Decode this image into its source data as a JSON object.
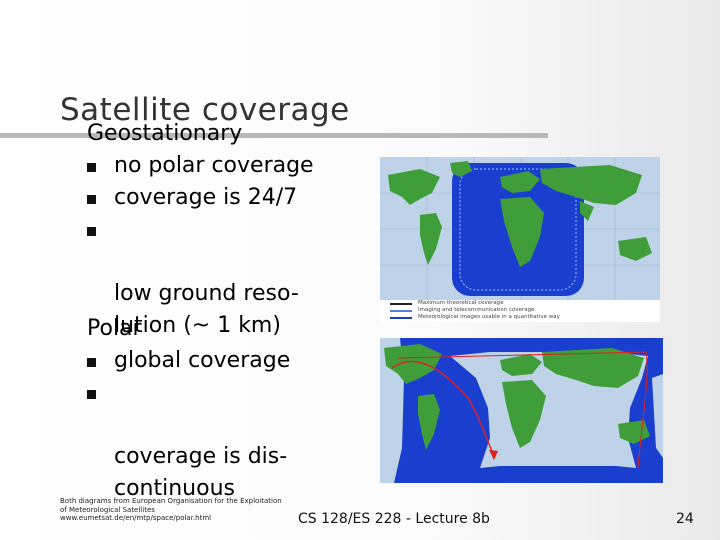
{
  "slide": {
    "title": "Satellite coverage",
    "geostationary": {
      "heading": "Geostationary",
      "bullets": [
        "no polar coverage",
        "coverage is 24/7",
        "low ground reso-\nlution (~ 1 km)"
      ]
    },
    "polar": {
      "heading": "Polar",
      "bullets": [
        "global coverage",
        "coverage is dis-\ncontinuous"
      ]
    },
    "caption": "Both diagrams from European Organisation for the Exploitation of Meteorological Satellites www.eumetsat.de/en/mtp/space/polar.html",
    "footer": "CS 128/ES 228 - Lecture 8b",
    "page_number": "24",
    "legend": [
      "Maximum theoretical coverage",
      "Imaging and telecommunication coverage",
      "Meteorological images usable in a quantitative way"
    ],
    "colors": {
      "ocean": "#1a3fcf",
      "land": "#3f9e3a",
      "outside": "#bfd3e8",
      "orbit_track": "#e02020"
    }
  }
}
